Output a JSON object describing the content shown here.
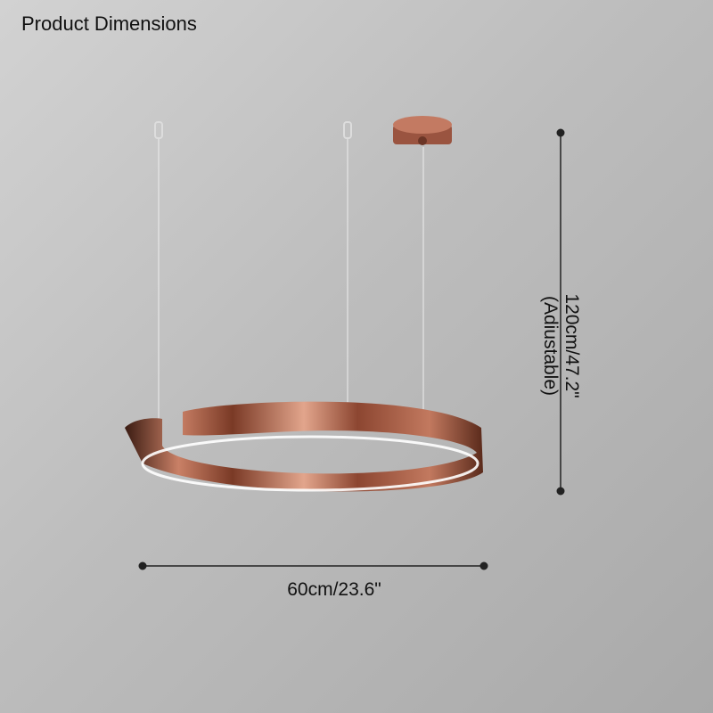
{
  "title": "Product Dimensions",
  "dimensions": {
    "width": "60cm/23.6\"",
    "height": "120cm/47.2\"",
    "height_note": "(Adiustable)"
  },
  "colors": {
    "ring": "#a4583f",
    "dimension_line": "#222222"
  }
}
